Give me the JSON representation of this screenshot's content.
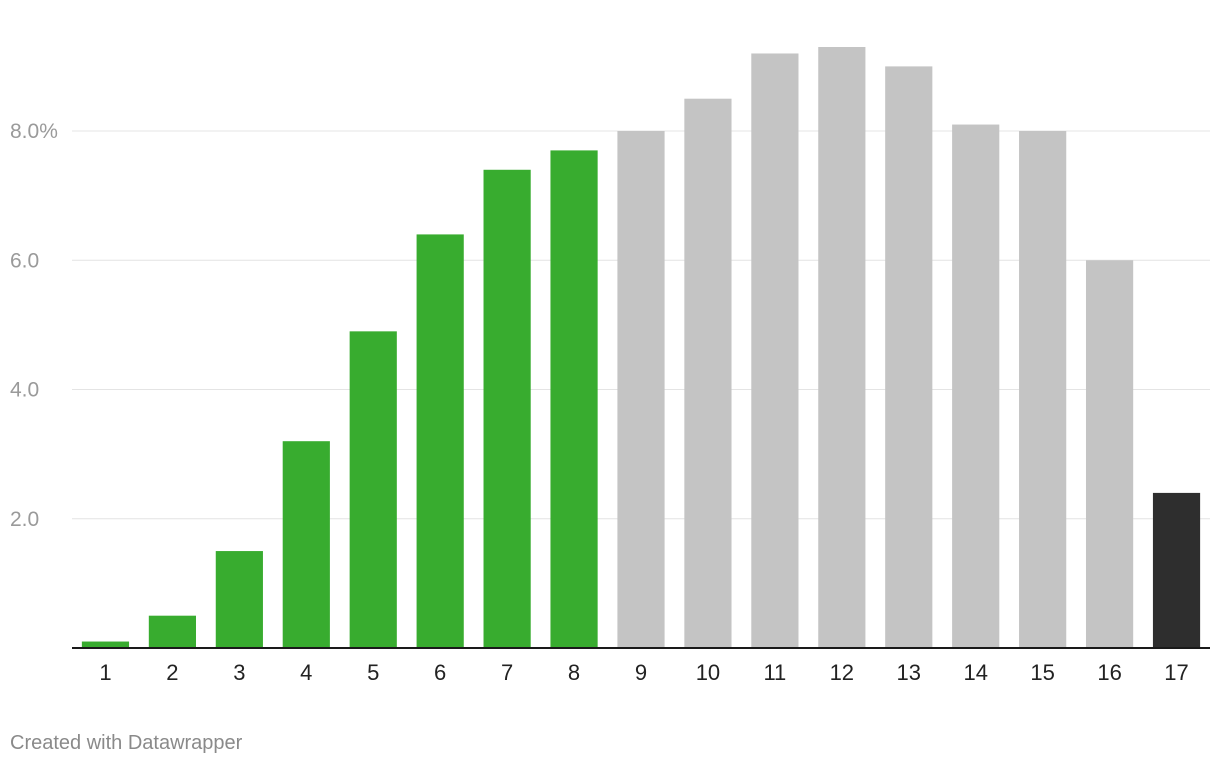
{
  "chart_data": {
    "type": "bar",
    "categories": [
      "1",
      "2",
      "3",
      "4",
      "5",
      "6",
      "7",
      "8",
      "9",
      "10",
      "11",
      "12",
      "13",
      "14",
      "15",
      "16",
      "17"
    ],
    "values": [
      0.1,
      0.5,
      1.5,
      3.2,
      4.9,
      6.4,
      7.4,
      7.7,
      8.0,
      8.5,
      9.2,
      9.3,
      9.0,
      8.1,
      8.0,
      6.0,
      2.4
    ],
    "bar_colors": [
      "#38ac2f",
      "#38ac2f",
      "#38ac2f",
      "#38ac2f",
      "#38ac2f",
      "#38ac2f",
      "#38ac2f",
      "#38ac2f",
      "#c4c4c4",
      "#c4c4c4",
      "#c4c4c4",
      "#c4c4c4",
      "#c4c4c4",
      "#c4c4c4",
      "#c4c4c4",
      "#c4c4c4",
      "#2e2e2e"
    ],
    "y_ticks": [
      {
        "value": 2,
        "label": "2.0"
      },
      {
        "value": 4,
        "label": "4.0"
      },
      {
        "value": 6,
        "label": "6.0"
      },
      {
        "value": 8,
        "label": "8.0%"
      }
    ],
    "ylim": [
      0,
      9.3
    ],
    "grid": true,
    "legend": "none",
    "title": "",
    "xlabel": "",
    "ylabel": ""
  },
  "colors": {
    "highlight": "#38ac2f",
    "neutral": "#c4c4c4",
    "latest": "#2e2e2e",
    "grid": "#e4e4e4"
  },
  "footer": {
    "credit": "Created with Datawrapper"
  }
}
